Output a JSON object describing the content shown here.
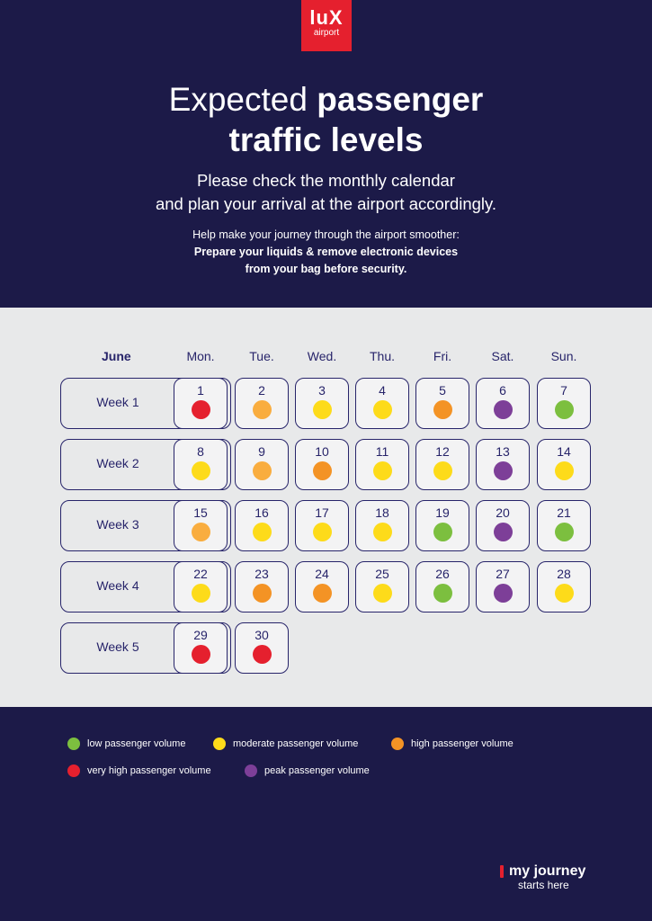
{
  "logo": {
    "line1": "luX",
    "line2": "airport"
  },
  "title": {
    "part1": "Expected ",
    "part2": "passenger",
    "part3": "traffic levels"
  },
  "subtitle": {
    "line1": "Please check the monthly calendar",
    "line2": "and plan your arrival at the airport accordingly."
  },
  "help": {
    "line1": "Help make your journey through the airport smoother:",
    "line2": "Prepare your liquids & remove electronic devices",
    "line3": "from your bag before security."
  },
  "calendar": {
    "month": "June",
    "days": [
      "Mon.",
      "Tue.",
      "Wed.",
      "Thu.",
      "Fri.",
      "Sat.",
      "Sun."
    ],
    "weeks": [
      {
        "label": "Week 1",
        "cells": [
          {
            "n": "1",
            "level": "very_high"
          },
          {
            "n": "2",
            "level": "high_light"
          },
          {
            "n": "3",
            "level": "moderate"
          },
          {
            "n": "4",
            "level": "moderate"
          },
          {
            "n": "5",
            "level": "high"
          },
          {
            "n": "6",
            "level": "peak"
          },
          {
            "n": "7",
            "level": "low"
          }
        ]
      },
      {
        "label": "Week 2",
        "cells": [
          {
            "n": "8",
            "level": "moderate"
          },
          {
            "n": "9",
            "level": "high_light"
          },
          {
            "n": "10",
            "level": "high"
          },
          {
            "n": "11",
            "level": "moderate"
          },
          {
            "n": "12",
            "level": "moderate"
          },
          {
            "n": "13",
            "level": "peak"
          },
          {
            "n": "14",
            "level": "moderate"
          }
        ]
      },
      {
        "label": "Week 3",
        "cells": [
          {
            "n": "15",
            "level": "high_light"
          },
          {
            "n": "16",
            "level": "moderate"
          },
          {
            "n": "17",
            "level": "moderate"
          },
          {
            "n": "18",
            "level": "moderate"
          },
          {
            "n": "19",
            "level": "low"
          },
          {
            "n": "20",
            "level": "peak"
          },
          {
            "n": "21",
            "level": "low"
          }
        ]
      },
      {
        "label": "Week 4",
        "cells": [
          {
            "n": "22",
            "level": "moderate"
          },
          {
            "n": "23",
            "level": "high"
          },
          {
            "n": "24",
            "level": "high"
          },
          {
            "n": "25",
            "level": "moderate"
          },
          {
            "n": "26",
            "level": "low"
          },
          {
            "n": "27",
            "level": "peak"
          },
          {
            "n": "28",
            "level": "moderate"
          }
        ]
      },
      {
        "label": "Week 5",
        "cells": [
          {
            "n": "29",
            "level": "very_high"
          },
          {
            "n": "30",
            "level": "very_high"
          }
        ]
      }
    ]
  },
  "colors": {
    "low": "#7cbf3f",
    "moderate": "#fddb1a",
    "high_light": "#f9ad3f",
    "high": "#f39325",
    "very_high": "#e5202e",
    "peak": "#7d3f98"
  },
  "legend": [
    {
      "label": "low passenger volume",
      "color": "#7cbf3f"
    },
    {
      "label": "moderate passenger volume",
      "color": "#fddb1a"
    },
    {
      "label": "high passenger volume",
      "color": "#f39325"
    },
    {
      "label": "very high passenger volume",
      "color": "#e5202e"
    },
    {
      "label": "peak passenger volume",
      "color": "#7d3f98"
    }
  ],
  "brand": {
    "line1": "my journey",
    "line2": "starts here"
  }
}
